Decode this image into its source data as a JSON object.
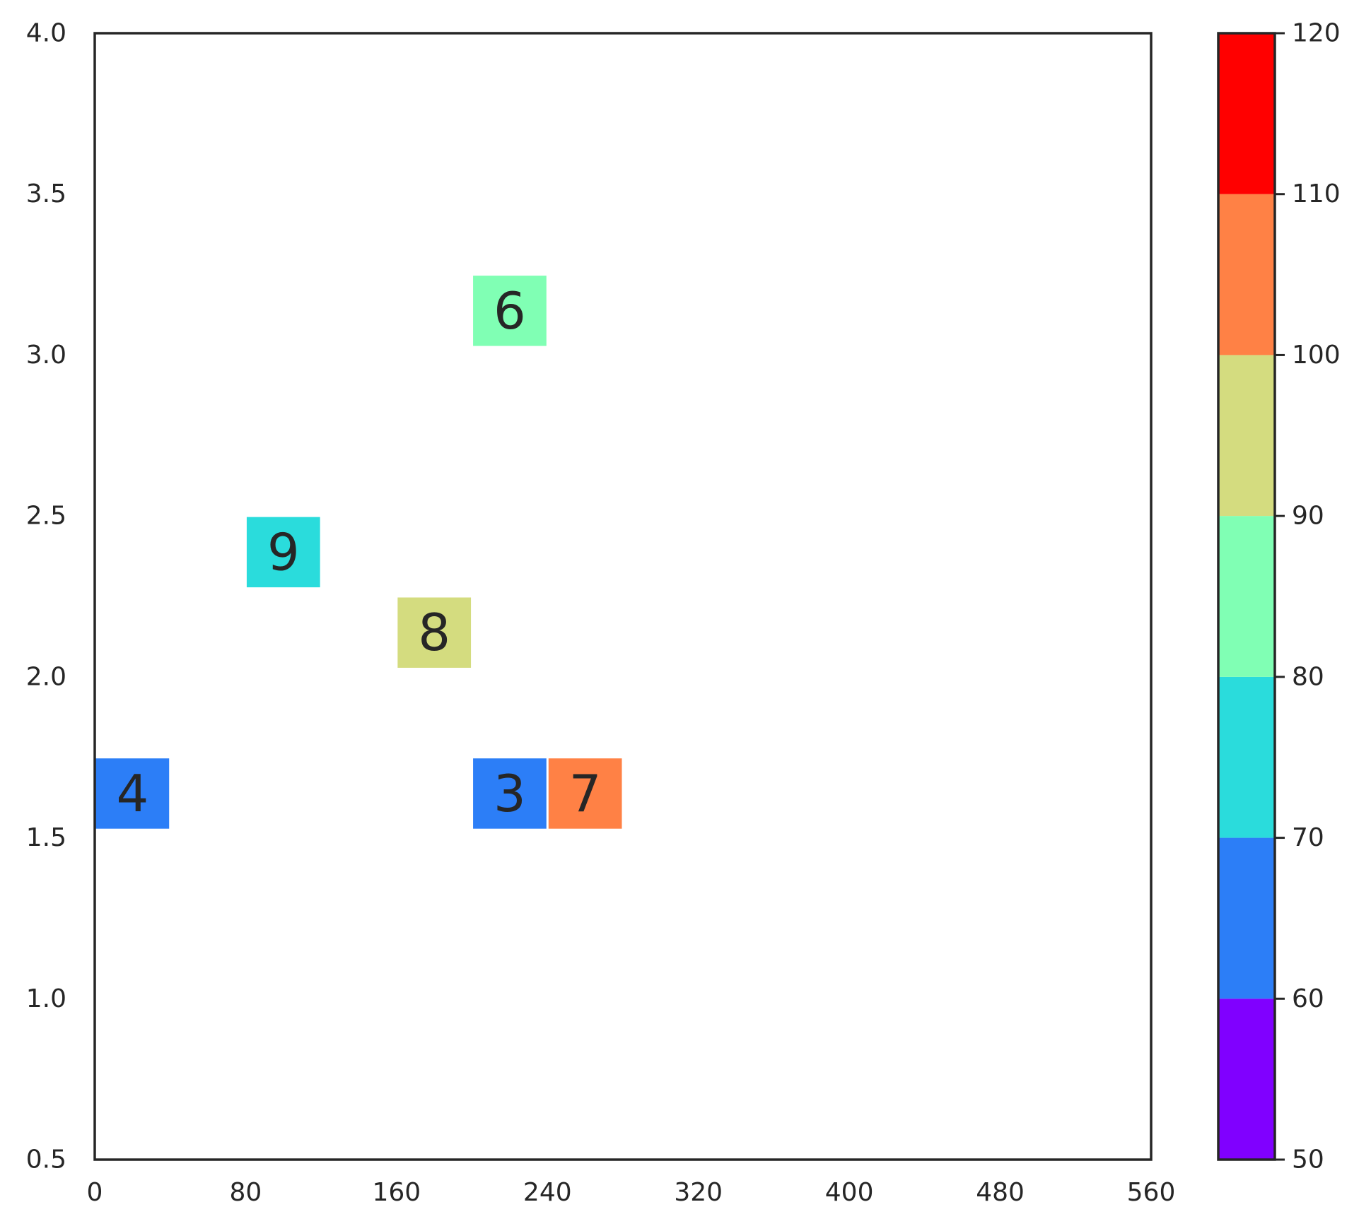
{
  "chart_data": {
    "type": "heatmap",
    "title": "",
    "xlabel": "",
    "ylabel": "",
    "xlim": [
      0,
      560
    ],
    "ylim": [
      0.5,
      4.0
    ],
    "xticks": [
      "0",
      "80",
      "160",
      "240",
      "320",
      "400",
      "480",
      "560"
    ],
    "yticks": [
      "0.5",
      "1.0",
      "1.5",
      "2.0",
      "2.5",
      "3.0",
      "3.5",
      "4.0"
    ],
    "cell_width": 40,
    "cell_height": 0.225,
    "cells": [
      {
        "x": 0,
        "y": 1.525,
        "value": 65,
        "label": "4"
      },
      {
        "x": 200,
        "y": 1.525,
        "value": 65,
        "label": "3"
      },
      {
        "x": 240,
        "y": 1.525,
        "value": 105,
        "label": "7"
      },
      {
        "x": 160,
        "y": 2.025,
        "value": 95,
        "label": "8"
      },
      {
        "x": 80,
        "y": 2.275,
        "value": 75,
        "label": "9"
      },
      {
        "x": 200,
        "y": 3.025,
        "value": 85,
        "label": "6"
      }
    ],
    "colorbar": {
      "min": 50,
      "max": 120,
      "ticks": [
        "50",
        "60",
        "70",
        "80",
        "90",
        "100",
        "110",
        "120"
      ],
      "bins": [
        {
          "from": 50,
          "to": 60,
          "color": "#8000ff"
        },
        {
          "from": 60,
          "to": 70,
          "color": "#2c7ef7"
        },
        {
          "from": 70,
          "to": 80,
          "color": "#2adcdc"
        },
        {
          "from": 80,
          "to": 90,
          "color": "#80ffb4"
        },
        {
          "from": 90,
          "to": 100,
          "color": "#d4dc7f"
        },
        {
          "from": 100,
          "to": 110,
          "color": "#ff8145"
        },
        {
          "from": 110,
          "to": 120,
          "color": "#ff0000"
        }
      ]
    },
    "grid": false
  }
}
